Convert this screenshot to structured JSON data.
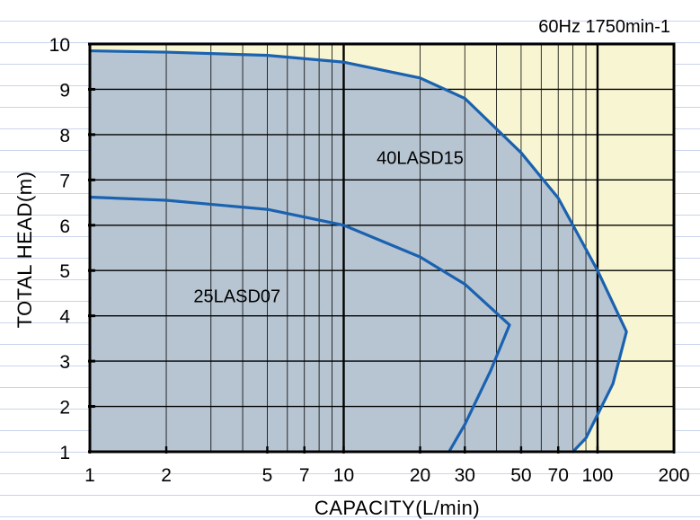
{
  "chart_data": {
    "type": "line",
    "subtitle": "60Hz 1750min-1",
    "xlabel": "CAPACITY(L/min)",
    "ylabel": "TOTAL HEAD(m)",
    "x_scale": "log",
    "xlim": [
      1,
      200
    ],
    "ylim": [
      1,
      10
    ],
    "x_tick_labels": [
      {
        "value": 1,
        "label": "1"
      },
      {
        "value": 2,
        "label": "2"
      },
      {
        "value": 5,
        "label": "5"
      },
      {
        "value": 7,
        "label": "7"
      },
      {
        "value": 10,
        "label": "10"
      },
      {
        "value": 20,
        "label": "20"
      },
      {
        "value": 30,
        "label": "30"
      },
      {
        "value": 50,
        "label": "50"
      },
      {
        "value": 70,
        "label": "70"
      },
      {
        "value": 100,
        "label": "100"
      },
      {
        "value": 200,
        "label": "200"
      }
    ],
    "y_tick_labels": [
      "1",
      "2",
      "3",
      "4",
      "5",
      "6",
      "7",
      "8",
      "9",
      "10"
    ],
    "grid": true,
    "colors": {
      "curve": "#1a62b0",
      "operating_region": "#b7c5d2",
      "plot_background": "#f8f6d2",
      "axis": "#000000",
      "grid": "#000000"
    },
    "series": [
      {
        "name": "40LASD15",
        "x": [
          1,
          2,
          5,
          10,
          20,
          30,
          50,
          70,
          100,
          130,
          115,
          90,
          80
        ],
        "y": [
          9.85,
          9.82,
          9.75,
          9.6,
          9.25,
          8.8,
          7.6,
          6.6,
          5.0,
          3.65,
          2.5,
          1.3,
          1.0
        ]
      },
      {
        "name": "25LASD07",
        "x": [
          1,
          2,
          5,
          10,
          20,
          30,
          45,
          38,
          30,
          26
        ],
        "y": [
          6.62,
          6.55,
          6.35,
          6.0,
          5.3,
          4.7,
          3.8,
          2.8,
          1.6,
          1.0
        ]
      }
    ]
  }
}
